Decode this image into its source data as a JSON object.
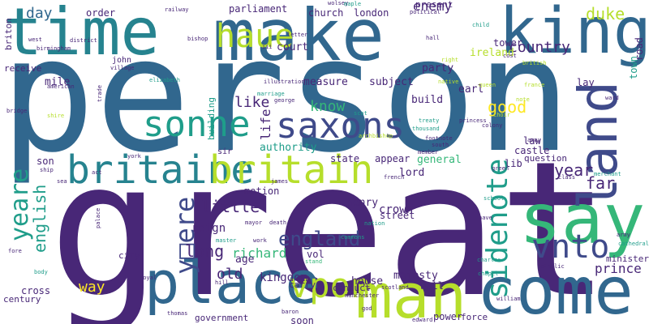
{
  "colors": {
    "background": "#ffffff",
    "palette": [
      "#440154",
      "#482777",
      "#3f4a8a",
      "#31678e",
      "#26838f",
      "#1f9d8a",
      "#35b779",
      "#6cce5a",
      "#b6de2b",
      "#fee825"
    ]
  },
  "words": [
    {
      "text": "person"
    },
    {
      "text": "great"
    },
    {
      "text": "time"
    },
    {
      "text": "make"
    },
    {
      "text": "king"
    },
    {
      "text": "say"
    },
    {
      "text": "come"
    },
    {
      "text": "place"
    },
    {
      "text": "man"
    },
    {
      "text": "land"
    },
    {
      "text": "britaine"
    },
    {
      "text": "britain"
    },
    {
      "text": "saxons"
    },
    {
      "text": "sonne"
    },
    {
      "text": "haue"
    },
    {
      "text": "sidenote"
    },
    {
      "text": "vpon"
    },
    {
      "text": "vnto"
    },
    {
      "text": "yeare"
    },
    {
      "text": "y□ere"
    },
    {
      "text": "england"
    },
    {
      "text": "country"
    },
    {
      "text": "duke"
    },
    {
      "text": "enemy"
    },
    {
      "text": "day"
    },
    {
      "text": "like"
    },
    {
      "text": "know"
    },
    {
      "text": "good"
    },
    {
      "text": "life"
    },
    {
      "text": "little"
    },
    {
      "text": "long"
    },
    {
      "text": "old"
    },
    {
      "text": "way"
    },
    {
      "text": "english"
    },
    {
      "text": "year"
    },
    {
      "text": "far"
    },
    {
      "text": "prince"
    },
    {
      "text": "reign"
    },
    {
      "text": "richard"
    },
    {
      "text": "kingdom"
    },
    {
      "text": "crown"
    },
    {
      "text": "house"
    },
    {
      "text": "majesty"
    },
    {
      "text": "henry"
    },
    {
      "text": "general"
    },
    {
      "text": "lord"
    },
    {
      "text": "authority"
    },
    {
      "text": "subject"
    },
    {
      "text": "measure"
    },
    {
      "text": "earl"
    },
    {
      "text": "build"
    },
    {
      "text": "party"
    },
    {
      "text": "ireland"
    },
    {
      "text": "tower"
    },
    {
      "text": "road"
    },
    {
      "text": "town"
    },
    {
      "text": "order"
    },
    {
      "text": "mile"
    },
    {
      "text": "parliament"
    },
    {
      "text": "church"
    },
    {
      "text": "london"
    },
    {
      "text": "present"
    },
    {
      "text": "court"
    },
    {
      "text": "son"
    },
    {
      "text": "age"
    },
    {
      "text": "vol"
    },
    {
      "text": "motion"
    },
    {
      "text": "state"
    },
    {
      "text": "appear"
    },
    {
      "text": "lib"
    },
    {
      "text": "castle"
    },
    {
      "text": "law"
    },
    {
      "text": "question"
    },
    {
      "text": "lay"
    },
    {
      "text": "street"
    },
    {
      "text": "wall"
    },
    {
      "text": "power"
    },
    {
      "text": "force"
    },
    {
      "text": "soon"
    },
    {
      "text": "government"
    },
    {
      "text": "cross"
    },
    {
      "text": "century"
    },
    {
      "text": "city"
    },
    {
      "text": "conduct"
    },
    {
      "text": "carry"
    },
    {
      "text": "minister"
    },
    {
      "text": "john"
    },
    {
      "text": "briton"
    },
    {
      "text": "receive"
    },
    {
      "text": "building"
    },
    {
      "text": "sir"
    },
    {
      "text": "ship"
    },
    {
      "text": "village"
    },
    {
      "text": "bishop"
    },
    {
      "text": "district"
    },
    {
      "text": "birmingham"
    },
    {
      "text": "west"
    },
    {
      "text": "political"
    },
    {
      "text": "wolsey"
    },
    {
      "text": "child"
    },
    {
      "text": "hall"
    },
    {
      "text": "letter"
    },
    {
      "text": "iii"
    },
    {
      "text": "cost"
    },
    {
      "text": "british"
    },
    {
      "text": "marriage"
    },
    {
      "text": "george"
    },
    {
      "text": "elizabeth"
    },
    {
      "text": "american"
    },
    {
      "text": "illustration"
    },
    {
      "text": "scot"
    },
    {
      "text": "treaty"
    },
    {
      "text": "princess"
    },
    {
      "text": "colony"
    },
    {
      "text": "queen"
    },
    {
      "text": "choir"
    },
    {
      "text": "thousand"
    },
    {
      "text": "york"
    },
    {
      "text": "act"
    },
    {
      "text": "french"
    },
    {
      "text": "james"
    },
    {
      "text": "mayor"
    },
    {
      "text": "nation"
    },
    {
      "text": "school"
    },
    {
      "text": "nave"
    },
    {
      "text": "army"
    },
    {
      "text": "cathedral"
    },
    {
      "text": "merchant"
    },
    {
      "text": "class"
    },
    {
      "text": "catholic"
    },
    {
      "text": "charles"
    },
    {
      "text": "chapel"
    },
    {
      "text": "william"
    },
    {
      "text": "thomas"
    },
    {
      "text": "baron"
    },
    {
      "text": "edward"
    },
    {
      "text": "scotland"
    },
    {
      "text": "god"
    },
    {
      "text": "manchester"
    },
    {
      "text": "death"
    },
    {
      "text": "royal"
    },
    {
      "text": "hill"
    },
    {
      "text": "body"
    },
    {
      "text": "fore"
    },
    {
      "text": "stand"
    },
    {
      "text": "commons"
    },
    {
      "text": "master"
    },
    {
      "text": "work"
    },
    {
      "text": "trade"
    },
    {
      "text": "railway"
    },
    {
      "text": "maple"
    },
    {
      "text": "green"
    },
    {
      "text": "footnote"
    },
    {
      "text": "south"
    },
    {
      "text": "away"
    },
    {
      "text": "ward"
    },
    {
      "text": "sea"
    },
    {
      "text": "bridge"
    },
    {
      "text": "palace"
    },
    {
      "text": "member"
    },
    {
      "text": "right"
    },
    {
      "text": "france"
    },
    {
      "text": "archbishop"
    },
    {
      "text": "native"
    },
    {
      "text": "note"
    },
    {
      "text": "shire"
    }
  ]
}
